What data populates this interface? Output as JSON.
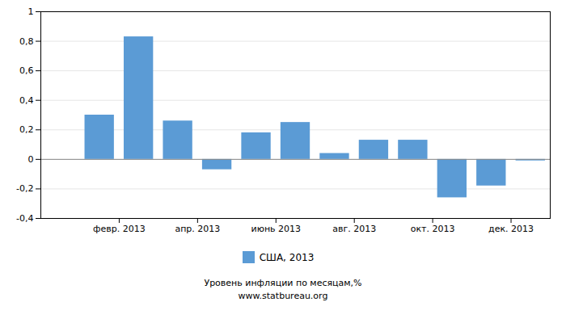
{
  "chart_data": {
    "type": "bar",
    "x": [
      1,
      2,
      3,
      4,
      5,
      6,
      7,
      8,
      9,
      10,
      11,
      12
    ],
    "series": [
      {
        "name": "США, 2013",
        "color": "#5B9BD5",
        "values": [
          0.3,
          0.83,
          0.26,
          -0.07,
          0.18,
          0.25,
          0.04,
          0.13,
          0.13,
          -0.26,
          -0.18,
          -0.01
        ]
      }
    ],
    "xlim": [
      -0.5,
      12.5
    ],
    "xticks": [
      {
        "value": 1.5,
        "label": "февр. 2013"
      },
      {
        "value": 3.5,
        "label": "апр. 2013"
      },
      {
        "value": 5.5,
        "label": "июнь 2013"
      },
      {
        "value": 7.5,
        "label": "авг. 2013"
      },
      {
        "value": 9.5,
        "label": "окт. 2013"
      },
      {
        "value": 11.5,
        "label": "дек. 2013"
      }
    ],
    "ylim": [
      -0.4,
      1.0
    ],
    "yticks": [
      {
        "value": -0.4,
        "label": "-0,4"
      },
      {
        "value": -0.2,
        "label": "-0,2"
      },
      0,
      {
        "value": 0.2,
        "label": "0,2"
      },
      {
        "value": 0.4,
        "label": "0,4"
      },
      {
        "value": 0.6,
        "label": "0,6"
      },
      {
        "value": 0.8,
        "label": "0,8"
      },
      1
    ],
    "grid": true,
    "legend": "bottom",
    "annotations": [
      "Уровень инфляции по месяцам,%",
      "www.statbureau.org"
    ]
  }
}
